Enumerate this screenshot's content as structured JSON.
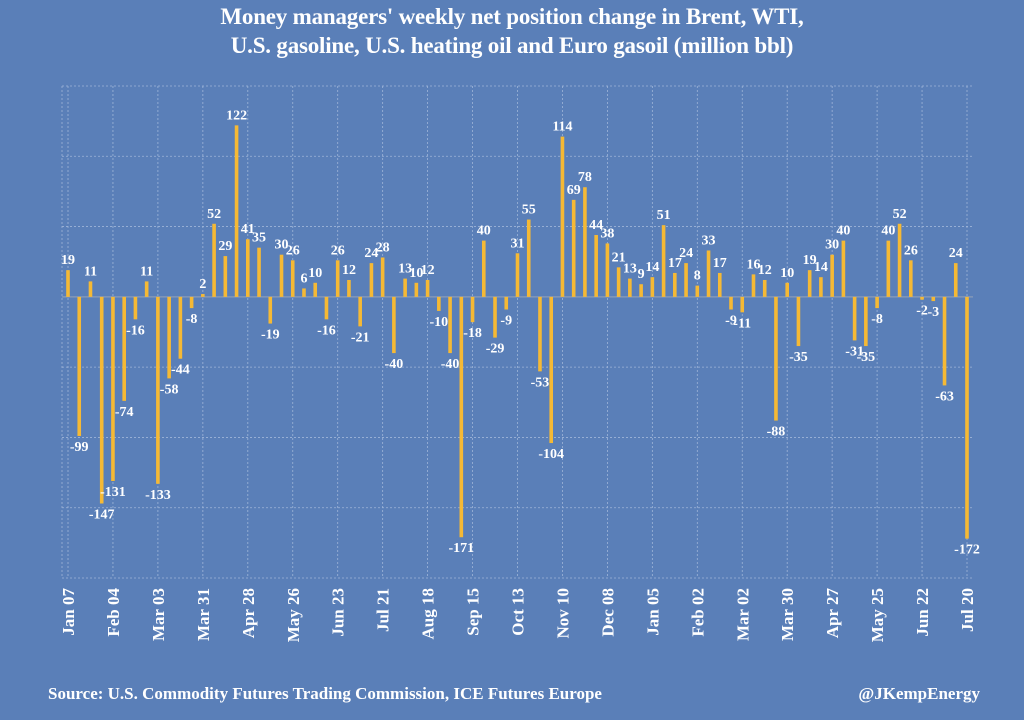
{
  "chart_data": {
    "type": "bar",
    "title_lines": [
      "Money managers' weekly net position change in Brent, WTI,",
      "U.S. gasoline, U.S. heating oil and Euro gasoil (million bbl)"
    ],
    "xlabel": "",
    "ylabel": "",
    "ylim": [
      -200,
      150
    ],
    "y_grid_step": 50,
    "grid": true,
    "y_tick_labels_shown": false,
    "x_tick_labels": [
      "Jan 07",
      "Feb 04",
      "Mar 03",
      "Mar 31",
      "Apr 28",
      "May 26",
      "Jun 23",
      "Jul 21",
      "Aug 18",
      "Sep 15",
      "Oct 13",
      "Nov 10",
      "Dec 08",
      "Jan 05",
      "Feb 02",
      "Mar 02",
      "Mar 30",
      "Apr 27",
      "May 25",
      "Jun 22",
      "Jul 20"
    ],
    "x_tick_every_n_bars": 4,
    "values": [
      19,
      -99,
      11,
      -147,
      -131,
      -74,
      -16,
      11,
      -133,
      -58,
      -44,
      -8,
      2,
      52,
      29,
      122,
      41,
      35,
      -19,
      30,
      26,
      6,
      10,
      -16,
      26,
      12,
      -21,
      24,
      28,
      -40,
      13,
      10,
      12,
      -10,
      -40,
      -171,
      -18,
      40,
      -29,
      -9,
      31,
      55,
      -53,
      -104,
      114,
      69,
      78,
      44,
      38,
      21,
      13,
      9,
      14,
      51,
      17,
      24,
      8,
      33,
      17,
      -9,
      -11,
      16,
      12,
      -88,
      10,
      -35,
      19,
      14,
      30,
      40,
      -31,
      -35,
      -8,
      40,
      52,
      26,
      -2,
      -3,
      -63,
      24,
      -172
    ],
    "data_labels": true,
    "colors": {
      "background": "#5a7fb8",
      "bar": "#f5b935",
      "grid": "#9fb5d8",
      "text": "#ffffff"
    }
  },
  "footer": {
    "source": "Source: U.S. Commodity Futures Trading Commission, ICE Futures Europe",
    "handle": "@JKempEnergy"
  }
}
